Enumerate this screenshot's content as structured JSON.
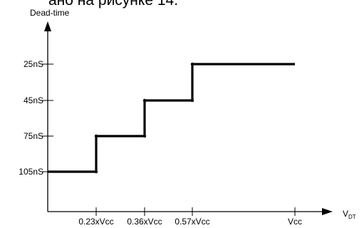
{
  "header_fragment": "ано на рисунке 14.",
  "chart_data": {
    "type": "line",
    "step": true,
    "ylabel": "Dead-time",
    "xlabel": "V",
    "xlabel_sub": "DT",
    "x_categories": [
      "0.23xVcc",
      "0.36xVcc",
      "0.57xVcc",
      "Vcc"
    ],
    "y_categories": [
      "105nS",
      "75nS",
      "45nS",
      "25nS"
    ],
    "series": [
      {
        "points": [
          {
            "x": "0",
            "y": "105nS"
          },
          {
            "x": "0.23xVcc",
            "y": "105nS"
          },
          {
            "x": "0.23xVcc",
            "y": "75nS"
          },
          {
            "x": "0.36xVcc",
            "y": "75nS"
          },
          {
            "x": "0.36xVcc",
            "y": "45nS"
          },
          {
            "x": "0.57xVcc",
            "y": "45nS"
          },
          {
            "x": "0.57xVcc",
            "y": "25nS"
          },
          {
            "x": "Vcc",
            "y": "25nS"
          }
        ]
      }
    ]
  }
}
